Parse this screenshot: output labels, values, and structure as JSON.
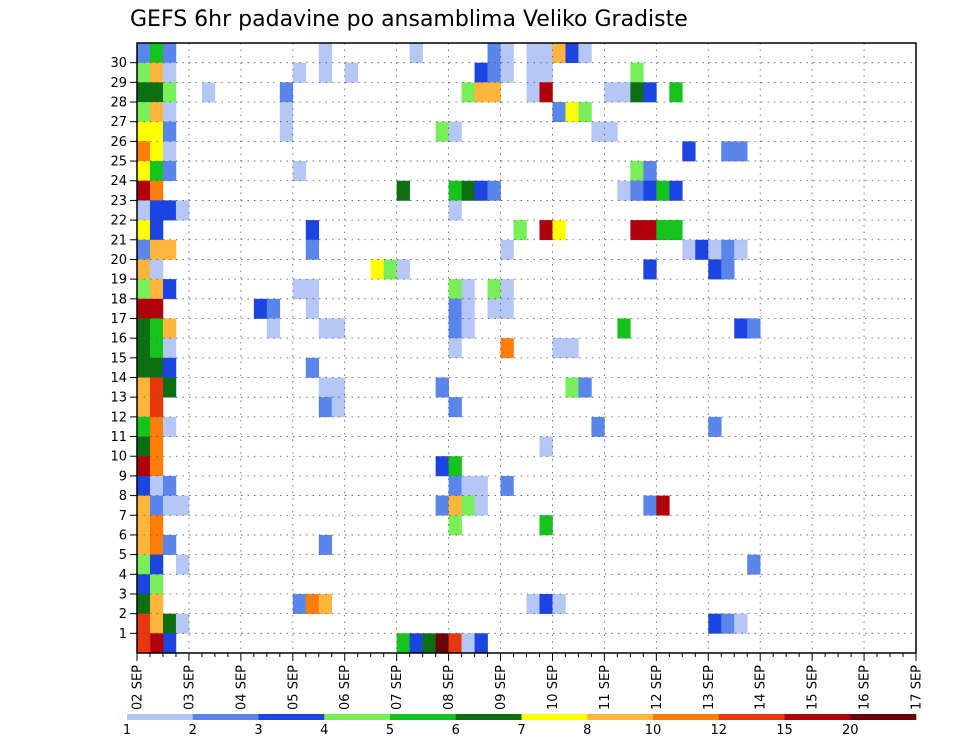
{
  "chart_data": {
    "type": "heatmap",
    "title": "GEFS 6hr padavine po ansamblima Veliko Gradiste",
    "xlabel": "",
    "ylabel": "",
    "x_ticks": [
      "02 SEP",
      "03 SEP",
      "04 SEP",
      "05 SEP",
      "06 SEP",
      "07 SEP",
      "08 SEP",
      "09 SEP",
      "10 SEP",
      "11 SEP",
      "12 SEP",
      "13 SEP",
      "14 SEP",
      "15 SEP",
      "16 SEP",
      "17 SEP"
    ],
    "y_ticks": [
      "1",
      "2",
      "3",
      "4",
      "5",
      "6",
      "7",
      "8",
      "9",
      "10",
      "11",
      "12",
      "13",
      "14",
      "15",
      "16",
      "17",
      "18",
      "19",
      "20",
      "21",
      "22",
      "23",
      "24",
      "25",
      "26",
      "27",
      "28",
      "29",
      "30"
    ],
    "members": 30,
    "steps_per_day": 4,
    "grid": true,
    "colorbar": {
      "position": "bottom",
      "labels": [
        "1",
        "2",
        "3",
        "4",
        "5",
        "6",
        "7",
        "8",
        "10",
        "12",
        "15",
        "20"
      ],
      "colors": [
        "#b5c7f5",
        "#5a86ec",
        "#1b44e0",
        "#78ee58",
        "#14c41c",
        "#0c6f12",
        "#ffff00",
        "#ffb53c",
        "#ff7d08",
        "#e8360e",
        "#b0000b",
        "#6b0008"
      ]
    },
    "cells": [
      [
        0,
        30,
        1
      ],
      [
        1,
        30,
        4
      ],
      [
        2,
        30,
        1
      ],
      [
        0,
        29,
        3
      ],
      [
        1,
        29,
        7
      ],
      [
        2,
        29,
        0
      ],
      [
        0,
        28,
        5
      ],
      [
        1,
        28,
        5
      ],
      [
        2,
        28,
        3
      ],
      [
        0,
        27,
        3
      ],
      [
        1,
        27,
        7
      ],
      [
        2,
        27,
        0
      ],
      [
        0,
        26,
        6
      ],
      [
        1,
        26,
        6
      ],
      [
        2,
        26,
        1
      ],
      [
        0,
        25,
        8
      ],
      [
        1,
        25,
        6
      ],
      [
        2,
        25,
        0
      ],
      [
        0,
        24,
        6
      ],
      [
        1,
        24,
        4
      ],
      [
        2,
        24,
        1
      ],
      [
        0,
        23,
        10
      ],
      [
        1,
        23,
        8
      ],
      [
        0,
        22,
        0
      ],
      [
        1,
        22,
        2
      ],
      [
        2,
        22,
        2
      ],
      [
        3,
        22,
        0
      ],
      [
        0,
        21,
        6
      ],
      [
        1,
        21,
        2
      ],
      [
        0,
        20,
        1
      ],
      [
        1,
        20,
        7
      ],
      [
        2,
        20,
        7
      ],
      [
        0,
        19,
        7
      ],
      [
        1,
        19,
        0
      ],
      [
        0,
        18,
        3
      ],
      [
        1,
        18,
        7
      ],
      [
        2,
        18,
        2
      ],
      [
        0,
        17,
        10
      ],
      [
        1,
        17,
        10
      ],
      [
        0,
        16,
        5
      ],
      [
        1,
        16,
        4
      ],
      [
        2,
        16,
        7
      ],
      [
        0,
        15,
        5
      ],
      [
        1,
        15,
        4
      ],
      [
        2,
        15,
        0
      ],
      [
        0,
        14,
        5
      ],
      [
        1,
        14,
        5
      ],
      [
        2,
        14,
        2
      ],
      [
        0,
        13,
        7
      ],
      [
        1,
        13,
        9
      ],
      [
        2,
        13,
        5
      ],
      [
        0,
        12,
        7
      ],
      [
        1,
        12,
        9
      ],
      [
        0,
        11,
        4
      ],
      [
        1,
        11,
        8
      ],
      [
        2,
        11,
        0
      ],
      [
        0,
        10,
        5
      ],
      [
        1,
        10,
        8
      ],
      [
        0,
        9,
        10
      ],
      [
        1,
        9,
        8
      ],
      [
        0,
        8,
        2
      ],
      [
        1,
        8,
        0
      ],
      [
        2,
        8,
        1
      ],
      [
        0,
        7,
        7
      ],
      [
        1,
        7,
        1
      ],
      [
        2,
        7,
        0
      ],
      [
        3,
        7,
        0
      ],
      [
        0,
        6,
        7
      ],
      [
        1,
        6,
        8
      ],
      [
        0,
        5,
        7
      ],
      [
        1,
        5,
        8
      ],
      [
        2,
        5,
        1
      ],
      [
        0,
        4,
        3
      ],
      [
        1,
        4,
        2
      ],
      [
        0,
        3,
        2
      ],
      [
        1,
        3,
        3
      ],
      [
        0,
        2,
        5
      ],
      [
        1,
        2,
        7
      ],
      [
        0,
        1,
        9
      ],
      [
        1,
        1,
        7
      ],
      [
        2,
        1,
        5
      ],
      [
        3,
        1,
        0
      ],
      [
        2,
        0,
        2
      ],
      [
        1,
        0,
        10
      ],
      [
        0,
        0,
        9
      ],
      [
        14,
        30,
        0
      ],
      [
        21,
        30,
        0
      ],
      [
        27,
        30,
        1
      ],
      [
        28,
        30,
        0
      ],
      [
        30,
        30,
        0
      ],
      [
        31,
        30,
        0
      ],
      [
        32,
        30,
        7
      ],
      [
        33,
        30,
        2
      ],
      [
        34,
        30,
        0
      ],
      [
        12,
        29,
        0
      ],
      [
        14,
        29,
        0
      ],
      [
        16,
        29,
        0
      ],
      [
        26,
        29,
        2
      ],
      [
        27,
        29,
        1
      ],
      [
        28,
        29,
        0
      ],
      [
        30,
        29,
        0
      ],
      [
        31,
        29,
        0
      ],
      [
        38,
        29,
        3
      ],
      [
        5,
        28,
        0
      ],
      [
        11,
        28,
        1
      ],
      [
        25,
        28,
        3
      ],
      [
        26,
        28,
        7
      ],
      [
        27,
        28,
        7
      ],
      [
        30,
        28,
        0
      ],
      [
        31,
        28,
        10
      ],
      [
        36,
        28,
        0
      ],
      [
        37,
        28,
        0
      ],
      [
        38,
        28,
        5
      ],
      [
        39,
        28,
        2
      ],
      [
        41,
        28,
        4
      ],
      [
        11,
        27,
        0
      ],
      [
        32,
        27,
        1
      ],
      [
        33,
        27,
        6
      ],
      [
        34,
        27,
        3
      ],
      [
        11,
        26,
        0
      ],
      [
        23,
        26,
        3
      ],
      [
        24,
        26,
        0
      ],
      [
        35,
        26,
        0
      ],
      [
        36,
        26,
        0
      ],
      [
        42,
        25,
        2
      ],
      [
        45,
        25,
        1
      ],
      [
        46,
        25,
        1
      ],
      [
        12,
        24,
        0
      ],
      [
        38,
        24,
        3
      ],
      [
        39,
        24,
        1
      ],
      [
        20,
        23,
        5
      ],
      [
        24,
        23,
        4
      ],
      [
        25,
        23,
        5
      ],
      [
        26,
        23,
        2
      ],
      [
        27,
        23,
        1
      ],
      [
        37,
        23,
        0
      ],
      [
        38,
        23,
        1
      ],
      [
        39,
        23,
        2
      ],
      [
        40,
        23,
        4
      ],
      [
        41,
        23,
        2
      ],
      [
        24,
        22,
        0
      ],
      [
        13,
        21,
        2
      ],
      [
        29,
        21,
        3
      ],
      [
        31,
        21,
        10
      ],
      [
        32,
        21,
        6
      ],
      [
        38,
        21,
        10
      ],
      [
        39,
        21,
        10
      ],
      [
        40,
        21,
        4
      ],
      [
        41,
        21,
        4
      ],
      [
        13,
        20,
        1
      ],
      [
        28,
        20,
        0
      ],
      [
        42,
        20,
        0
      ],
      [
        43,
        20,
        2
      ],
      [
        44,
        20,
        0
      ],
      [
        45,
        20,
        1
      ],
      [
        46,
        20,
        0
      ],
      [
        44,
        19,
        2
      ],
      [
        45,
        19,
        1
      ],
      [
        18,
        19,
        6
      ],
      [
        19,
        19,
        3
      ],
      [
        20,
        19,
        0
      ],
      [
        39,
        19,
        2
      ],
      [
        12,
        18,
        0
      ],
      [
        13,
        18,
        0
      ],
      [
        24,
        18,
        3
      ],
      [
        25,
        18,
        0
      ],
      [
        27,
        18,
        3
      ],
      [
        28,
        18,
        0
      ],
      [
        9,
        17,
        2
      ],
      [
        10,
        17,
        1
      ],
      [
        13,
        17,
        0
      ],
      [
        24,
        17,
        1
      ],
      [
        25,
        17,
        0
      ],
      [
        27,
        17,
        0
      ],
      [
        28,
        17,
        0
      ],
      [
        10,
        16,
        0
      ],
      [
        14,
        16,
        0
      ],
      [
        15,
        16,
        0
      ],
      [
        24,
        16,
        1
      ],
      [
        25,
        16,
        0
      ],
      [
        37,
        16,
        4
      ],
      [
        46,
        16,
        2
      ],
      [
        47,
        16,
        1
      ],
      [
        24,
        15,
        0
      ],
      [
        28,
        15,
        8
      ],
      [
        32,
        15,
        0
      ],
      [
        33,
        15,
        0
      ],
      [
        13,
        14,
        1
      ],
      [
        14,
        13,
        0
      ],
      [
        15,
        13,
        0
      ],
      [
        23,
        13,
        1
      ],
      [
        33,
        13,
        3
      ],
      [
        34,
        13,
        1
      ],
      [
        14,
        12,
        1
      ],
      [
        15,
        12,
        0
      ],
      [
        24,
        12,
        1
      ],
      [
        35,
        11,
        1
      ],
      [
        44,
        11,
        1
      ],
      [
        31,
        10,
        0
      ],
      [
        23,
        9,
        2
      ],
      [
        24,
        9,
        4
      ],
      [
        24,
        8,
        1
      ],
      [
        25,
        8,
        0
      ],
      [
        26,
        8,
        0
      ],
      [
        28,
        8,
        1
      ],
      [
        23,
        7,
        1
      ],
      [
        24,
        7,
        7
      ],
      [
        25,
        7,
        3
      ],
      [
        26,
        7,
        0
      ],
      [
        39,
        7,
        1
      ],
      [
        40,
        7,
        10
      ],
      [
        24,
        6,
        3
      ],
      [
        31,
        6,
        4
      ],
      [
        14,
        5,
        1
      ],
      [
        3,
        4,
        0
      ],
      [
        47,
        4,
        1
      ],
      [
        12,
        2,
        1
      ],
      [
        13,
        2,
        8
      ],
      [
        14,
        2,
        7
      ],
      [
        30,
        2,
        0
      ],
      [
        31,
        2,
        2
      ],
      [
        32,
        2,
        0
      ],
      [
        44,
        1,
        2
      ],
      [
        45,
        1,
        1
      ],
      [
        46,
        1,
        0
      ],
      [
        20,
        0,
        4
      ],
      [
        21,
        0,
        2
      ],
      [
        22,
        0,
        5
      ],
      [
        23,
        0,
        11
      ],
      [
        24,
        0,
        9
      ],
      [
        25,
        0,
        0
      ],
      [
        26,
        0,
        2
      ]
    ]
  }
}
